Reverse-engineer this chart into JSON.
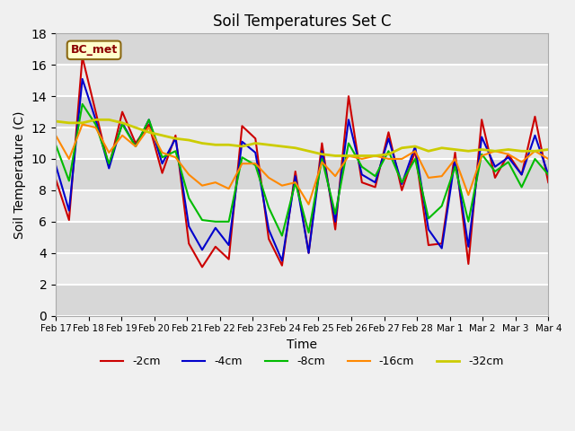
{
  "title": "Soil Temperatures Set C",
  "xlabel": "Time",
  "ylabel": "Soil Temperature (C)",
  "annotation": "BC_met",
  "ylim": [
    0,
    18
  ],
  "xtick_labels": [
    "Feb 17",
    "Feb 18",
    "Feb 19",
    "Feb 20",
    "Feb 21",
    "Feb 22",
    "Feb 23",
    "Feb 24",
    "Feb 25",
    "Feb 26",
    "Feb 27",
    "Feb 28",
    "Mar 1",
    "Mar 2",
    "Mar 3",
    "Mar 4"
  ],
  "legend_labels": [
    "-2cm",
    "-4cm",
    "-8cm",
    "-16cm",
    "-32cm"
  ],
  "line_colors": [
    "#cc0000",
    "#0000cc",
    "#00bb00",
    "#ff8800",
    "#cccc00"
  ],
  "line_widths": [
    1.5,
    1.5,
    1.5,
    1.5,
    2.0
  ],
  "background_color": "#e8e8e8",
  "grid_color": "#ffffff",
  "series": {
    "2cm": [
      8.7,
      6.1,
      16.5,
      13.0,
      9.5,
      13.0,
      11.0,
      12.2,
      9.1,
      11.5,
      4.6,
      3.1,
      4.4,
      3.6,
      12.1,
      11.3,
      4.9,
      3.2,
      9.2,
      4.0,
      11.0,
      5.5,
      14.0,
      8.5,
      8.2,
      11.7,
      8.0,
      10.5,
      4.5,
      4.6,
      10.4,
      3.3,
      12.5,
      8.8,
      10.3,
      9.0,
      12.7,
      8.5
    ],
    "4cm": [
      9.6,
      6.7,
      15.1,
      12.5,
      9.4,
      12.3,
      10.8,
      12.5,
      9.7,
      11.3,
      5.7,
      4.2,
      5.6,
      4.5,
      11.1,
      10.4,
      5.5,
      3.5,
      8.9,
      4.0,
      10.5,
      6.0,
      12.5,
      9.0,
      8.5,
      11.3,
      8.4,
      10.8,
      5.5,
      4.3,
      10.0,
      4.4,
      11.4,
      9.5,
      10.1,
      9.0,
      11.5,
      9.0
    ],
    "8cm": [
      10.9,
      8.6,
      13.5,
      12.2,
      9.7,
      12.2,
      10.8,
      12.5,
      10.1,
      10.5,
      7.5,
      6.1,
      6.0,
      6.0,
      10.1,
      9.6,
      6.9,
      5.1,
      8.5,
      5.3,
      10.0,
      6.5,
      11.0,
      9.5,
      8.9,
      10.5,
      8.5,
      10.0,
      6.2,
      7.0,
      9.5,
      6.0,
      10.3,
      9.2,
      9.8,
      8.2,
      10.0,
      9.0
    ],
    "16cm": [
      11.5,
      10.0,
      12.2,
      12.0,
      10.4,
      11.5,
      10.8,
      12.0,
      10.4,
      10.1,
      9.0,
      8.3,
      8.5,
      8.1,
      9.7,
      9.7,
      8.8,
      8.3,
      8.5,
      7.1,
      9.8,
      8.9,
      10.2,
      10.0,
      10.2,
      10.0,
      10.0,
      10.5,
      8.8,
      8.9,
      10.0,
      7.7,
      10.2,
      10.5,
      10.3,
      9.8,
      10.5,
      10.0
    ],
    "32cm": [
      12.4,
      12.3,
      12.3,
      12.5,
      12.5,
      12.3,
      12.0,
      11.7,
      11.5,
      11.3,
      11.2,
      11.0,
      10.9,
      10.9,
      10.8,
      11.0,
      10.9,
      10.8,
      10.7,
      10.5,
      10.3,
      10.2,
      10.2,
      10.2,
      10.2,
      10.3,
      10.7,
      10.8,
      10.5,
      10.7,
      10.6,
      10.5,
      10.6,
      10.5,
      10.6,
      10.5,
      10.5,
      10.6
    ]
  }
}
